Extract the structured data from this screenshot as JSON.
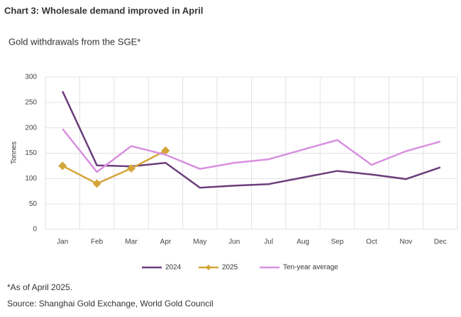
{
  "chart_data": {
    "type": "line",
    "title": "Chart 3: Wholesale demand improved in April",
    "subtitle": "Gold withdrawals from the SGE*",
    "y_label": "Tonnes",
    "categories": [
      "Jan",
      "Feb",
      "Mar",
      "Apr",
      "May",
      "Jun",
      "Jul",
      "Aug",
      "Sep",
      "Oct",
      "Nov",
      "Dec"
    ],
    "series": [
      {
        "name": "2024",
        "color": "#6b3d7a",
        "values": [
          272,
          126,
          124,
          131,
          82,
          86,
          89,
          102,
          115,
          108,
          99,
          122
        ]
      },
      {
        "name": "2025",
        "color": "#d4a63a",
        "marker": "diamond",
        "values": [
          125,
          90,
          120,
          155,
          null,
          null,
          null,
          null,
          null,
          null,
          null,
          null
        ]
      },
      {
        "name": "Ten-year average",
        "color": "#d88fe0",
        "values": [
          198,
          113,
          164,
          147,
          119,
          131,
          138,
          157,
          176,
          127,
          154,
          173
        ]
      }
    ],
    "ylim": [
      0,
      300
    ],
    "yticks": [
      0,
      50,
      100,
      150,
      200,
      250,
      300
    ],
    "grid": true,
    "legend": "bottom",
    "footnote": "*As of April 2025.",
    "source": "Source: Shanghai Gold Exchange, World Gold Council"
  }
}
